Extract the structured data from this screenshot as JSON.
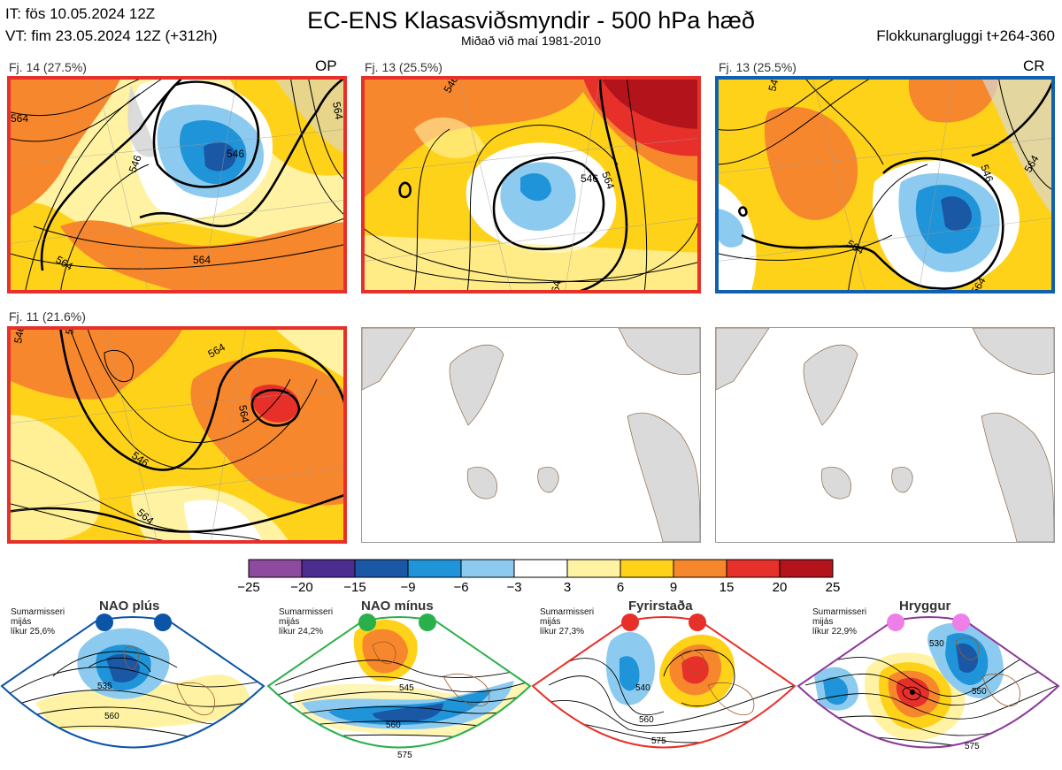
{
  "header": {
    "line1": "IT: fös 10.05.2024 12Z",
    "line2": "VT: fim 23.05.2024 12Z  (+312h)",
    "title": "EC-ENS Klasasviðsmyndir - 500 hPa hæð",
    "subtitle": "Miðað við maí 1981-2010",
    "right": "Flokkunargluggi t+264-360"
  },
  "panels": [
    {
      "label": "Fj. 14 (27.5%)",
      "tag": "OP",
      "frame": "#e8302a",
      "contours": [
        "546",
        "546",
        "564",
        "564",
        "564",
        "564"
      ]
    },
    {
      "label": "Fj. 13 (25.5%)",
      "tag": "",
      "frame": "#e8302a",
      "contours": [
        "546",
        "564",
        "546",
        "564"
      ]
    },
    {
      "label": "Fj. 13 (25.5%)",
      "tag": "CR",
      "frame": "#1060b0",
      "contours": [
        "546",
        "564",
        "564",
        "546",
        "564"
      ]
    },
    {
      "label": "Fj. 11 (21.6%)",
      "tag": "",
      "frame": "#e8302a",
      "contours": [
        "546",
        "546",
        "546",
        "564",
        "564",
        "564"
      ]
    }
  ],
  "chart_data": {
    "type": "heatmap",
    "colorbar": {
      "ticks": [
        "−25",
        "−20",
        "−15",
        "−9",
        "−6",
        "−3",
        "3",
        "6",
        "9",
        "15",
        "20",
        "25"
      ],
      "colors": [
        "#8e4a9e",
        "#4a2d8f",
        "#1a58a6",
        "#1f94d9",
        "#8ccbef",
        "#ffffff",
        "#fff3a3",
        "#ffd21a",
        "#f7872d",
        "#e8302a",
        "#b3141b"
      ]
    }
  },
  "regimes": [
    {
      "name": "NAO plús",
      "season": "Sumarmisseri",
      "sub": "mijás",
      "prob": "líkur 25,6%",
      "color": "#0b55a8",
      "contours": [
        "535",
        "560"
      ]
    },
    {
      "name": "NAO mínus",
      "season": "Sumarmisseri",
      "sub": "mijás",
      "prob": "líkur 24,2%",
      "color": "#2ab04a",
      "contours": [
        "545",
        "560",
        "575"
      ]
    },
    {
      "name": "Fyrirstaða",
      "season": "Sumarmisseri",
      "sub": "mijás",
      "prob": "líkur 27,3%",
      "color": "#e8302a",
      "contours": [
        "540",
        "560",
        "575"
      ]
    },
    {
      "name": "Hryggur",
      "season": "Sumarmisseri",
      "sub": "mijás",
      "prob": "líkur 22,9%",
      "color": "#ee7fe8",
      "contours": [
        "530",
        "550",
        "575"
      ]
    }
  ]
}
